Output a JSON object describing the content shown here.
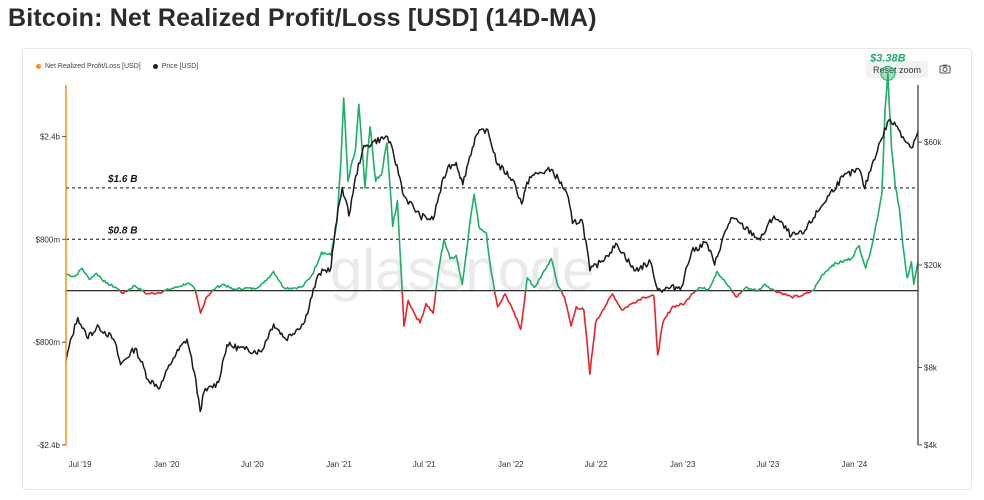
{
  "title": "Bitcoin: Net Realized Profit/Loss [USD] (14D-MA)",
  "legend": [
    {
      "label": "Net Realized Profit/Loss [USD]",
      "color": "#f7931a"
    },
    {
      "label": "Price [USD]",
      "color": "#222222"
    }
  ],
  "toolbar": {
    "reset_label": "Reset zoom",
    "camera_icon": "camera-icon"
  },
  "watermark": "glassnode",
  "colors": {
    "profit": "#1fae6a",
    "loss": "#e0252c",
    "price": "#1a1a1a",
    "axis_left": "#f7931a",
    "axis_right": "#333333"
  },
  "annotations": {
    "peak_label": "$3.38B",
    "line_high_label": "$1.6 B",
    "line_low_label": "$0.8 B"
  },
  "chart_data": {
    "type": "line",
    "title": "Bitcoin: Net Realized Profit/Loss [USD] (14D-MA)",
    "x_ticks": [
      "Jul '19",
      "Jan '20",
      "Jul '20",
      "Jan '21",
      "Jul '21",
      "Jan '22",
      "Jul '22",
      "Jan '23",
      "Jul '23",
      "Jan '24"
    ],
    "x_tick_dates": [
      "2019-07-01",
      "2020-01-01",
      "2020-07-01",
      "2021-01-01",
      "2021-07-01",
      "2022-01-01",
      "2022-07-01",
      "2023-01-01",
      "2023-07-01",
      "2024-01-01"
    ],
    "x_range": [
      "2019-06-01",
      "2024-05-15"
    ],
    "y_left": {
      "ticks": [
        "$2.4b",
        "$800m",
        "-$800m",
        "-$2.4b"
      ],
      "tick_values": [
        2.4,
        0.8,
        -0.8,
        -2.4
      ],
      "range": [
        -2.4,
        3.2
      ],
      "unit": "USD billions"
    },
    "y_right": {
      "ticks": [
        "$60k",
        "$20k",
        "$8k",
        "$4k"
      ],
      "tick_values": [
        60000,
        20000,
        8000,
        4000
      ],
      "range": [
        4000,
        100000
      ],
      "scale": "log"
    },
    "reference_lines": [
      {
        "value": 1.6,
        "label": "$1.6 B"
      },
      {
        "value": 0.8,
        "label": "$0.8 B"
      },
      {
        "value": 0,
        "label": ""
      }
    ],
    "peak": {
      "date": "2024-03-12",
      "value": 3.38,
      "label": "$3.38B"
    },
    "series": [
      {
        "name": "Net Realized Profit/Loss [USD]",
        "axis": "left",
        "points": [
          [
            "2019-06-01",
            0.26
          ],
          [
            "2019-06-20",
            0.22
          ],
          [
            "2019-07-05",
            0.35
          ],
          [
            "2019-07-20",
            0.18
          ],
          [
            "2019-08-05",
            0.27
          ],
          [
            "2019-08-25",
            0.12
          ],
          [
            "2019-09-15",
            0.05
          ],
          [
            "2019-10-01",
            -0.04
          ],
          [
            "2019-10-25",
            0.08
          ],
          [
            "2019-11-20",
            -0.05
          ],
          [
            "2019-12-15",
            -0.03
          ],
          [
            "2020-01-05",
            0.02
          ],
          [
            "2020-01-25",
            0.06
          ],
          [
            "2020-02-15",
            0.12
          ],
          [
            "2020-03-01",
            0.02
          ],
          [
            "2020-03-13",
            -0.35
          ],
          [
            "2020-03-25",
            -0.1
          ],
          [
            "2020-04-15",
            0.05
          ],
          [
            "2020-05-01",
            0.1
          ],
          [
            "2020-05-20",
            0.02
          ],
          [
            "2020-06-15",
            0.04
          ],
          [
            "2020-07-05",
            0.03
          ],
          [
            "2020-07-25",
            0.12
          ],
          [
            "2020-08-15",
            0.3
          ],
          [
            "2020-09-05",
            0.05
          ],
          [
            "2020-09-25",
            0.04
          ],
          [
            "2020-10-15",
            0.06
          ],
          [
            "2020-11-05",
            0.25
          ],
          [
            "2020-11-25",
            0.6
          ],
          [
            "2020-12-15",
            0.55
          ],
          [
            "2020-12-28",
            1.1
          ],
          [
            "2021-01-05",
            2.0
          ],
          [
            "2021-01-11",
            3.0
          ],
          [
            "2021-01-20",
            1.7
          ],
          [
            "2021-02-05",
            2.2
          ],
          [
            "2021-02-12",
            2.9
          ],
          [
            "2021-02-25",
            1.6
          ],
          [
            "2021-03-08",
            2.55
          ],
          [
            "2021-03-20",
            1.7
          ],
          [
            "2021-04-01",
            1.8
          ],
          [
            "2021-04-13",
            2.3
          ],
          [
            "2021-04-25",
            1.0
          ],
          [
            "2021-05-05",
            1.4
          ],
          [
            "2021-05-19",
            -0.55
          ],
          [
            "2021-05-28",
            -0.15
          ],
          [
            "2021-06-10",
            -0.35
          ],
          [
            "2021-06-22",
            -0.5
          ],
          [
            "2021-07-05",
            -0.2
          ],
          [
            "2021-07-20",
            -0.35
          ],
          [
            "2021-08-01",
            0.35
          ],
          [
            "2021-08-12",
            0.8
          ],
          [
            "2021-08-25",
            0.5
          ],
          [
            "2021-09-07",
            0.55
          ],
          [
            "2021-09-20",
            0.1
          ],
          [
            "2021-10-05",
            1.0
          ],
          [
            "2021-10-15",
            1.5
          ],
          [
            "2021-10-25",
            1.0
          ],
          [
            "2021-11-10",
            0.9
          ],
          [
            "2021-11-20",
            0.3
          ],
          [
            "2021-12-04",
            -0.25
          ],
          [
            "2021-12-20",
            -0.05
          ],
          [
            "2022-01-05",
            -0.3
          ],
          [
            "2022-01-22",
            -0.6
          ],
          [
            "2022-02-05",
            0.2
          ],
          [
            "2022-02-20",
            0.05
          ],
          [
            "2022-03-05",
            0.2
          ],
          [
            "2022-03-28",
            0.5
          ],
          [
            "2022-04-10",
            0.1
          ],
          [
            "2022-04-25",
            -0.1
          ],
          [
            "2022-05-09",
            -0.55
          ],
          [
            "2022-05-20",
            -0.25
          ],
          [
            "2022-06-05",
            -0.3
          ],
          [
            "2022-06-13",
            -0.9
          ],
          [
            "2022-06-18",
            -1.3
          ],
          [
            "2022-06-30",
            -0.5
          ],
          [
            "2022-07-15",
            -0.3
          ],
          [
            "2022-08-05",
            -0.05
          ],
          [
            "2022-08-25",
            -0.3
          ],
          [
            "2022-09-15",
            -0.2
          ],
          [
            "2022-10-10",
            -0.1
          ],
          [
            "2022-11-01",
            -0.08
          ],
          [
            "2022-11-09",
            -1.0
          ],
          [
            "2022-11-20",
            -0.5
          ],
          [
            "2022-12-10",
            -0.25
          ],
          [
            "2023-01-05",
            -0.2
          ],
          [
            "2023-01-20",
            -0.05
          ],
          [
            "2023-02-05",
            0.05
          ],
          [
            "2023-02-25",
            0.02
          ],
          [
            "2023-03-15",
            0.3
          ],
          [
            "2023-04-05",
            0.1
          ],
          [
            "2023-04-25",
            -0.1
          ],
          [
            "2023-05-15",
            0.05
          ],
          [
            "2023-06-10",
            0.0
          ],
          [
            "2023-06-25",
            0.1
          ],
          [
            "2023-07-15",
            0.0
          ],
          [
            "2023-08-05",
            -0.05
          ],
          [
            "2023-08-20",
            -0.1
          ],
          [
            "2023-09-10",
            -0.08
          ],
          [
            "2023-10-05",
            0.0
          ],
          [
            "2023-10-25",
            0.25
          ],
          [
            "2023-11-15",
            0.4
          ],
          [
            "2023-12-05",
            0.45
          ],
          [
            "2023-12-25",
            0.5
          ],
          [
            "2024-01-11",
            0.7
          ],
          [
            "2024-01-25",
            0.35
          ],
          [
            "2024-02-10",
            0.8
          ],
          [
            "2024-02-28",
            1.5
          ],
          [
            "2024-03-06",
            2.8
          ],
          [
            "2024-03-12",
            3.38
          ],
          [
            "2024-03-20",
            2.2
          ],
          [
            "2024-03-28",
            1.6
          ],
          [
            "2024-04-05",
            1.3
          ],
          [
            "2024-04-13",
            0.7
          ],
          [
            "2024-04-22",
            0.2
          ],
          [
            "2024-05-01",
            0.45
          ],
          [
            "2024-05-06",
            0.1
          ],
          [
            "2024-05-15",
            0.45
          ]
        ]
      },
      {
        "name": "Price [USD]",
        "axis": "right",
        "points": [
          [
            "2019-06-01",
            8500
          ],
          [
            "2019-06-26",
            12500
          ],
          [
            "2019-07-15",
            10500
          ],
          [
            "2019-08-10",
            11500
          ],
          [
            "2019-09-10",
            10300
          ],
          [
            "2019-09-25",
            8200
          ],
          [
            "2019-10-26",
            9500
          ],
          [
            "2019-11-22",
            7200
          ],
          [
            "2019-12-18",
            6700
          ],
          [
            "2020-01-15",
            8700
          ],
          [
            "2020-02-13",
            10300
          ],
          [
            "2020-03-12",
            5400
          ],
          [
            "2020-03-20",
            6400
          ],
          [
            "2020-04-20",
            7000
          ],
          [
            "2020-05-08",
            9800
          ],
          [
            "2020-06-15",
            9400
          ],
          [
            "2020-07-20",
            9200
          ],
          [
            "2020-08-15",
            11800
          ],
          [
            "2020-09-10",
            10300
          ],
          [
            "2020-10-20",
            12000
          ],
          [
            "2020-11-20",
            18500
          ],
          [
            "2020-12-15",
            19500
          ],
          [
            "2021-01-08",
            40000
          ],
          [
            "2021-01-22",
            31000
          ],
          [
            "2021-02-20",
            56000
          ],
          [
            "2021-03-13",
            60000
          ],
          [
            "2021-04-14",
            63000
          ],
          [
            "2021-05-19",
            37000
          ],
          [
            "2021-06-22",
            31000
          ],
          [
            "2021-07-20",
            30000
          ],
          [
            "2021-08-20",
            48000
          ],
          [
            "2021-09-07",
            50000
          ],
          [
            "2021-09-21",
            41000
          ],
          [
            "2021-10-20",
            64000
          ],
          [
            "2021-11-10",
            67500
          ],
          [
            "2021-12-04",
            49000
          ],
          [
            "2022-01-05",
            43000
          ],
          [
            "2022-01-24",
            34500
          ],
          [
            "2022-02-10",
            44000
          ],
          [
            "2022-03-28",
            47000
          ],
          [
            "2022-04-30",
            38000
          ],
          [
            "2022-05-12",
            29000
          ],
          [
            "2022-06-01",
            30000
          ],
          [
            "2022-06-18",
            19000
          ],
          [
            "2022-07-10",
            20500
          ],
          [
            "2022-08-15",
            24000
          ],
          [
            "2022-09-20",
            19000
          ],
          [
            "2022-10-25",
            20500
          ],
          [
            "2022-11-09",
            16000
          ],
          [
            "2022-12-30",
            16500
          ],
          [
            "2023-01-20",
            22500
          ],
          [
            "2023-02-20",
            24500
          ],
          [
            "2023-03-10",
            20000
          ],
          [
            "2023-04-14",
            30500
          ],
          [
            "2023-06-15",
            25000
          ],
          [
            "2023-07-14",
            31000
          ],
          [
            "2023-08-20",
            26000
          ],
          [
            "2023-09-15",
            26500
          ],
          [
            "2023-10-24",
            34000
          ],
          [
            "2023-12-08",
            44000
          ],
          [
            "2024-01-11",
            47000
          ],
          [
            "2024-01-23",
            39500
          ],
          [
            "2024-02-28",
            62000
          ],
          [
            "2024-03-14",
            73000
          ],
          [
            "2024-04-01",
            69000
          ],
          [
            "2024-04-13",
            63000
          ],
          [
            "2024-05-01",
            57000
          ],
          [
            "2024-05-15",
            66000
          ]
        ]
      }
    ]
  }
}
